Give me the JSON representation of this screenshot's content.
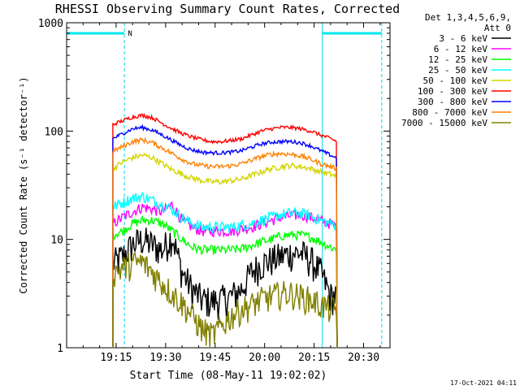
{
  "chart_data": {
    "type": "line",
    "title": "RHESSI Observing Summary Count Rates, Corrected",
    "xlabel": "Start Time (08-May-11 19:02:02)",
    "ylabel": "Corrected Count Rate (s⁻¹ detector⁻¹)",
    "y_scale": "log",
    "ylim": [
      1,
      1000
    ],
    "x_unit": "minutes after 19:02:02",
    "xlim": [
      0,
      98
    ],
    "x_ticks": [
      {
        "at": 15,
        "label": "19:15"
      },
      {
        "at": 30,
        "label": "19:30"
      },
      {
        "at": 45,
        "label": "19:45"
      },
      {
        "at": 60,
        "label": "20:00"
      },
      {
        "at": 75,
        "label": "20:15"
      },
      {
        "at": 90,
        "label": "20:30"
      }
    ],
    "y_ticks": [
      {
        "at": 1,
        "label": "1"
      },
      {
        "at": 10,
        "label": "10"
      },
      {
        "at": 100,
        "label": "100"
      },
      {
        "at": 1000,
        "label": "1000"
      }
    ],
    "legend_header": [
      "Det 1,3,4,5,6,9,",
      "Att 0"
    ],
    "legend_placement": "right",
    "annotations": {
      "night_marker": "N",
      "night_intervals": [
        [
          0,
          17.5
        ],
        [
          77.5,
          95.5
        ]
      ],
      "saa_vertical_lines": [
        0,
        17.5,
        77.5,
        95.5
      ],
      "timestamp": "17-Oct-2021 04:11"
    },
    "x": [
      14,
      17,
      20,
      23,
      26,
      29,
      32,
      35,
      38,
      41,
      44,
      47,
      50,
      53,
      56,
      59,
      62,
      65,
      68,
      71,
      74,
      77,
      80,
      82
    ],
    "series": [
      {
        "name": "3 - 6 keV",
        "color": "#000000",
        "values": [
          6,
          7,
          9,
          10,
          9,
          8,
          11,
          5,
          3.5,
          2.8,
          2.7,
          2.8,
          3,
          3.5,
          5,
          6,
          6.5,
          7,
          7.5,
          7.5,
          6.5,
          5,
          3,
          3
        ]
      },
      {
        "name": "6 - 12 keV",
        "color": "#ff00ff",
        "values": [
          14,
          16,
          18,
          20,
          19,
          18,
          21,
          15,
          13,
          12,
          12,
          12,
          12,
          12.5,
          13,
          14,
          15,
          16,
          16.5,
          17,
          16,
          15,
          14,
          13
        ]
      },
      {
        "name": "12 - 25 keV",
        "color": "#00ff00",
        "values": [
          11,
          12,
          14,
          15,
          15,
          14,
          12,
          10,
          8.5,
          8,
          8,
          8,
          8,
          8.2,
          8.8,
          9.5,
          10,
          10.8,
          11,
          11,
          10.5,
          9.5,
          8.5,
          8
        ]
      },
      {
        "name": "25 - 50 keV",
        "color": "#00ffff",
        "values": [
          20,
          22,
          24,
          25,
          23,
          21,
          19,
          16,
          14,
          13,
          13,
          13,
          13,
          13.5,
          14,
          15,
          16,
          17,
          17.5,
          17.5,
          16.5,
          15,
          14,
          14
        ]
      },
      {
        "name": "50 - 100 keV",
        "color": "#d4d400",
        "values": [
          45,
          52,
          57,
          60,
          57,
          50,
          44,
          40,
          37,
          35,
          34,
          34,
          35,
          36,
          39,
          42,
          45,
          47,
          48,
          47,
          45,
          42,
          40,
          38
        ]
      },
      {
        "name": "100 - 300 keV",
        "color": "#ff0000",
        "values": [
          115,
          125,
          135,
          140,
          133,
          118,
          105,
          95,
          88,
          83,
          80,
          80,
          82,
          85,
          92,
          100,
          105,
          108,
          108,
          105,
          100,
          92,
          85,
          80
        ]
      },
      {
        "name": "300 - 800 keV",
        "color": "#0000ff",
        "values": [
          85,
          95,
          105,
          108,
          102,
          92,
          82,
          73,
          67,
          64,
          63,
          63,
          64,
          66,
          71,
          76,
          79,
          80,
          80,
          78,
          73,
          66,
          60,
          56
        ]
      },
      {
        "name": "800 - 7000 keV",
        "color": "#ff8000",
        "values": [
          65,
          72,
          80,
          83,
          78,
          70,
          62,
          55,
          50,
          48,
          47,
          47,
          48,
          50,
          54,
          58,
          61,
          62,
          61,
          59,
          55,
          50,
          47,
          45
        ]
      },
      {
        "name": "7000 - 15000 keV",
        "color": "#808000",
        "values": [
          5,
          5.5,
          6,
          6.2,
          5,
          4,
          3.2,
          2.6,
          2,
          1.5,
          1.3,
          1.6,
          2,
          2.3,
          2.5,
          2.8,
          3,
          3.2,
          3.2,
          3,
          2.8,
          2.5,
          2.3,
          2.2
        ]
      }
    ]
  }
}
